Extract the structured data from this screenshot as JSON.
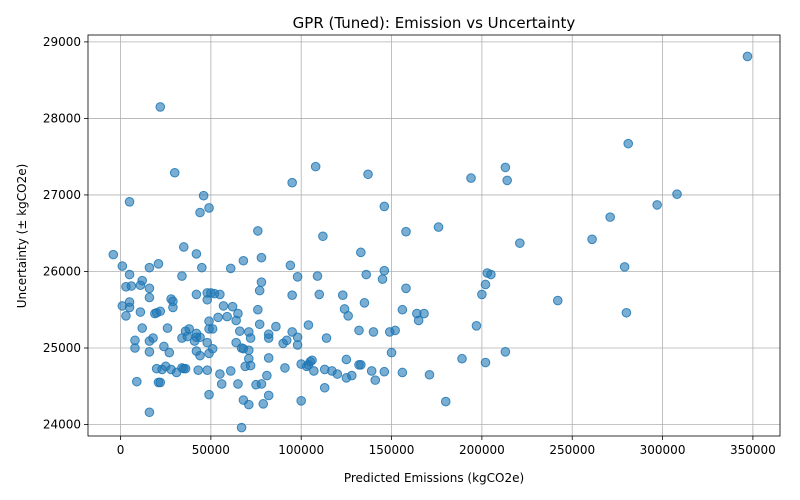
{
  "chart_data": {
    "type": "scatter",
    "title": "GPR (Tuned): Emission vs Uncertainty",
    "xlabel": "Predicted Emissions (kgCO2e)",
    "ylabel": "Uncertainty (± kgCO2e)",
    "xlim": [
      -18000,
      365000
    ],
    "ylim": [
      23850,
      29090
    ],
    "x_ticks": [
      0,
      50000,
      100000,
      150000,
      200000,
      250000,
      300000,
      350000
    ],
    "x_tick_labels": [
      "0",
      "50000",
      "100000",
      "150000",
      "200000",
      "250000",
      "300000",
      "350000"
    ],
    "y_ticks": [
      24000,
      25000,
      26000,
      27000,
      28000,
      29000
    ],
    "y_tick_labels": [
      "24000",
      "25000",
      "26000",
      "27000",
      "28000",
      "29000"
    ],
    "grid": true,
    "point_color": "#1f77b4",
    "point_opacity": 0.6,
    "points": [
      [
        347000,
        28810
      ],
      [
        281000,
        27670
      ],
      [
        308000,
        27010
      ],
      [
        297000,
        26870
      ],
      [
        271000,
        26710
      ],
      [
        261000,
        26420
      ],
      [
        279000,
        26060
      ],
      [
        280000,
        25460
      ],
      [
        242000,
        25620
      ],
      [
        213000,
        27360
      ],
      [
        214000,
        27190
      ],
      [
        194000,
        27220
      ],
      [
        221000,
        26370
      ],
      [
        203000,
        25980
      ],
      [
        205000,
        25960
      ],
      [
        202000,
        25830
      ],
      [
        200000,
        25700
      ],
      [
        197000,
        25290
      ],
      [
        213000,
        24950
      ],
      [
        202000,
        24810
      ],
      [
        189000,
        24860
      ],
      [
        180000,
        24300
      ],
      [
        171000,
        24650
      ],
      [
        176000,
        26580
      ],
      [
        158000,
        26520
      ],
      [
        146000,
        26850
      ],
      [
        146000,
        26010
      ],
      [
        145000,
        25900
      ],
      [
        158000,
        25780
      ],
      [
        156000,
        25500
      ],
      [
        164000,
        25450
      ],
      [
        168000,
        25450
      ],
      [
        165000,
        25360
      ],
      [
        152000,
        25230
      ],
      [
        149000,
        25210
      ],
      [
        150000,
        24940
      ],
      [
        156000,
        24680
      ],
      [
        146000,
        24690
      ],
      [
        141000,
        24580
      ],
      [
        139000,
        24700
      ],
      [
        140000,
        25210
      ],
      [
        137000,
        27270
      ],
      [
        136000,
        25960
      ],
      [
        135000,
        25590
      ],
      [
        133000,
        26250
      ],
      [
        132000,
        25230
      ],
      [
        133000,
        24780
      ],
      [
        132000,
        24780
      ],
      [
        108000,
        27370
      ],
      [
        112000,
        26460
      ],
      [
        109000,
        25940
      ],
      [
        123000,
        25690
      ],
      [
        110000,
        25700
      ],
      [
        124000,
        25510
      ],
      [
        126000,
        25420
      ],
      [
        104000,
        25300
      ],
      [
        114000,
        25130
      ],
      [
        125000,
        24850
      ],
      [
        128000,
        24640
      ],
      [
        125000,
        24610
      ],
      [
        120000,
        24660
      ],
      [
        117000,
        24700
      ],
      [
        113000,
        24720
      ],
      [
        113000,
        24480
      ],
      [
        106000,
        24840
      ],
      [
        105000,
        24820
      ],
      [
        104000,
        24780
      ],
      [
        103000,
        24760
      ],
      [
        107000,
        24700
      ],
      [
        100000,
        24790
      ],
      [
        100000,
        24310
      ],
      [
        95000,
        27160
      ],
      [
        94000,
        26080
      ],
      [
        98000,
        25930
      ],
      [
        95000,
        25690
      ],
      [
        95000,
        25210
      ],
      [
        98000,
        25140
      ],
      [
        92000,
        25100
      ],
      [
        98000,
        25040
      ],
      [
        90000,
        25060
      ],
      [
        86000,
        25280
      ],
      [
        91000,
        24740
      ],
      [
        82000,
        24870
      ],
      [
        81000,
        24640
      ],
      [
        82000,
        24380
      ],
      [
        79000,
        24270
      ],
      [
        76000,
        26530
      ],
      [
        78000,
        26180
      ],
      [
        68000,
        26140
      ],
      [
        61000,
        26040
      ],
      [
        78000,
        25860
      ],
      [
        77000,
        25750
      ],
      [
        76000,
        25500
      ],
      [
        62000,
        25540
      ],
      [
        65000,
        25450
      ],
      [
        59000,
        25410
      ],
      [
        64000,
        25360
      ],
      [
        77000,
        25310
      ],
      [
        66000,
        25220
      ],
      [
        71000,
        25210
      ],
      [
        82000,
        25180
      ],
      [
        82000,
        25130
      ],
      [
        72000,
        25130
      ],
      [
        64000,
        25070
      ],
      [
        67000,
        25000
      ],
      [
        68000,
        24990
      ],
      [
        71000,
        24970
      ],
      [
        71000,
        24860
      ],
      [
        72000,
        24770
      ],
      [
        69000,
        24760
      ],
      [
        61000,
        24700
      ],
      [
        55000,
        24660
      ],
      [
        65000,
        24530
      ],
      [
        56000,
        24530
      ],
      [
        75000,
        24520
      ],
      [
        78000,
        24530
      ],
      [
        68000,
        24320
      ],
      [
        71000,
        24260
      ],
      [
        67000,
        23960
      ],
      [
        46000,
        26990
      ],
      [
        44000,
        26770
      ],
      [
        49000,
        26830
      ],
      [
        35000,
        26320
      ],
      [
        42000,
        26230
      ],
      [
        45000,
        26050
      ],
      [
        34000,
        25940
      ],
      [
        48000,
        25720
      ],
      [
        50000,
        25720
      ],
      [
        52000,
        25710
      ],
      [
        55000,
        25700
      ],
      [
        42000,
        25700
      ],
      [
        48000,
        25630
      ],
      [
        57000,
        25550
      ],
      [
        54000,
        25400
      ],
      [
        49000,
        25350
      ],
      [
        49000,
        25250
      ],
      [
        51000,
        25250
      ],
      [
        42000,
        25190
      ],
      [
        42000,
        25140
      ],
      [
        44000,
        25140
      ],
      [
        41000,
        25090
      ],
      [
        48000,
        25070
      ],
      [
        51000,
        24990
      ],
      [
        49000,
        24930
      ],
      [
        44000,
        24900
      ],
      [
        42000,
        24960
      ],
      [
        48000,
        24710
      ],
      [
        43000,
        24710
      ],
      [
        49000,
        24390
      ],
      [
        30000,
        27290
      ],
      [
        28000,
        25640
      ],
      [
        29000,
        25610
      ],
      [
        29000,
        25530
      ],
      [
        38000,
        25250
      ],
      [
        36000,
        25220
      ],
      [
        37000,
        25150
      ],
      [
        34000,
        25130
      ],
      [
        26000,
        25260
      ],
      [
        24000,
        25020
      ],
      [
        27000,
        24940
      ],
      [
        25000,
        24760
      ],
      [
        28000,
        24720
      ],
      [
        31000,
        24680
      ],
      [
        35000,
        24730
      ],
      [
        34000,
        24740
      ],
      [
        36000,
        24730
      ],
      [
        22000,
        28150
      ],
      [
        5000,
        26910
      ],
      [
        16000,
        26050
      ],
      [
        5000,
        25960
      ],
      [
        12000,
        25880
      ],
      [
        11000,
        25820
      ],
      [
        6000,
        25810
      ],
      [
        3000,
        25800
      ],
      [
        16000,
        25780
      ],
      [
        16000,
        25660
      ],
      [
        5000,
        25600
      ],
      [
        1000,
        25550
      ],
      [
        5000,
        25530
      ],
      [
        3000,
        25420
      ],
      [
        11000,
        25470
      ],
      [
        19000,
        25450
      ],
      [
        20000,
        25460
      ],
      [
        22000,
        25480
      ],
      [
        12000,
        25260
      ],
      [
        18000,
        25130
      ],
      [
        16000,
        25090
      ],
      [
        8000,
        25100
      ],
      [
        8000,
        25000
      ],
      [
        16000,
        24950
      ],
      [
        23000,
        24720
      ],
      [
        20000,
        24730
      ],
      [
        9000,
        24560
      ],
      [
        21000,
        24550
      ],
      [
        22000,
        24550
      ],
      [
        16000,
        24160
      ],
      [
        -4000,
        26220
      ],
      [
        1000,
        26070
      ],
      [
        21000,
        26100
      ]
    ]
  }
}
